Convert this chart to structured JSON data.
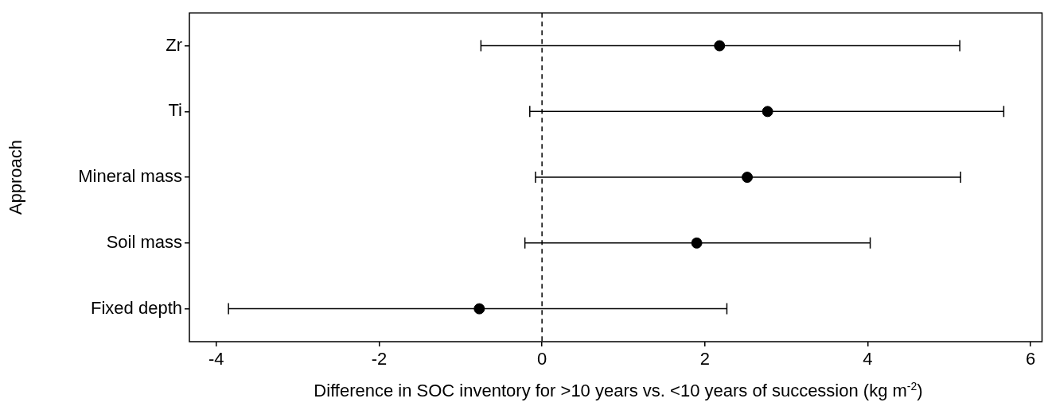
{
  "chart_data": {
    "type": "scatter",
    "orientation": "horizontal",
    "ylabel": "Approach",
    "xlabel": "Difference in SOC inventory for >10 years vs. <10 years of succession (kg m$^{-2}$)",
    "categories": [
      "Zr",
      "Ti",
      "Mineral mass",
      "Soil mass",
      "Fixed depth"
    ],
    "values": [
      2.18,
      2.77,
      2.52,
      1.9,
      -0.77
    ],
    "errors": [
      [
        -0.75,
        5.13
      ],
      [
        -0.15,
        5.67
      ],
      [
        -0.08,
        5.14
      ],
      [
        -0.21,
        4.03
      ],
      [
        -3.85,
        2.27
      ]
    ],
    "color": "#000000",
    "marker": "circle",
    "grid": false,
    "legend": false,
    "xlim": [
      -4.33,
      6.14
    ],
    "xticks": [
      -4,
      -2,
      0,
      2,
      4,
      6
    ],
    "ref_lines": [
      {
        "axis": "x",
        "value": 0,
        "line_style": "dashed",
        "color": "#000000"
      }
    ]
  }
}
